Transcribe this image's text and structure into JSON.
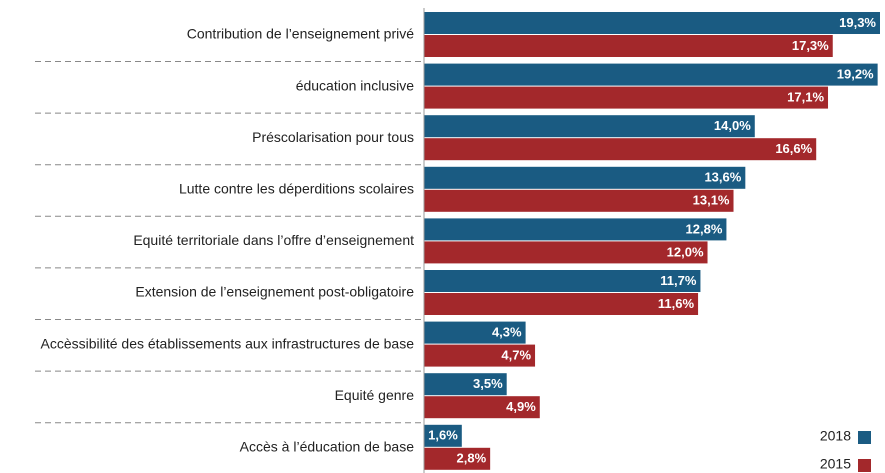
{
  "chart_data": {
    "type": "bar",
    "orientation": "horizontal",
    "categories": [
      "Contribution de l’enseignement privé",
      "éducation inclusive",
      "Préscolarisation pour tous",
      "Lutte contre les déperditions scolaires",
      "Equité territoriale dans l’offre d’enseignement",
      "Extension de l’enseignement post-obligatoire",
      "Accèssibilité des établissements aux infrastructures de base",
      "Equité genre",
      "Accès à l’éducation de base"
    ],
    "series": [
      {
        "name": "2018",
        "color": "#1a5b82",
        "values": [
          19.3,
          19.2,
          14.0,
          13.6,
          12.8,
          11.7,
          4.3,
          3.5,
          1.6
        ],
        "value_labels": [
          "19,3%",
          "19,2%",
          "14,0%",
          "13,6%",
          "12,8%",
          "11,7%",
          "4,3%",
          "3,5%",
          "1,6%"
        ]
      },
      {
        "name": "2015",
        "color": "#a3282b",
        "values": [
          17.3,
          17.1,
          16.6,
          13.1,
          12.0,
          11.6,
          4.7,
          4.9,
          2.8
        ],
        "value_labels": [
          "17,3%",
          "17,1%",
          "16,6%",
          "13,1%",
          "12,0%",
          "11,6%",
          "4,7%",
          "4,9%",
          "2,8%"
        ]
      }
    ],
    "legend": "lower right"
  }
}
